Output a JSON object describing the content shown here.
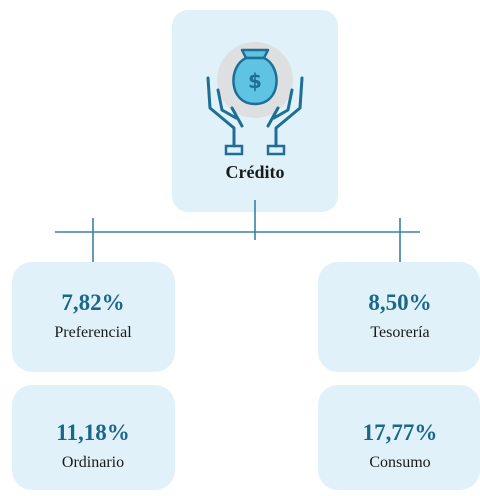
{
  "root": {
    "label": "Crédito"
  },
  "nodes": [
    {
      "value": "7,82%",
      "label": "Preferencial"
    },
    {
      "value": "8,50%",
      "label": "Tesorería"
    },
    {
      "value": "11,18%",
      "label": "Ordinario"
    },
    {
      "value": "17,77%",
      "label": "Consumo"
    }
  ]
}
